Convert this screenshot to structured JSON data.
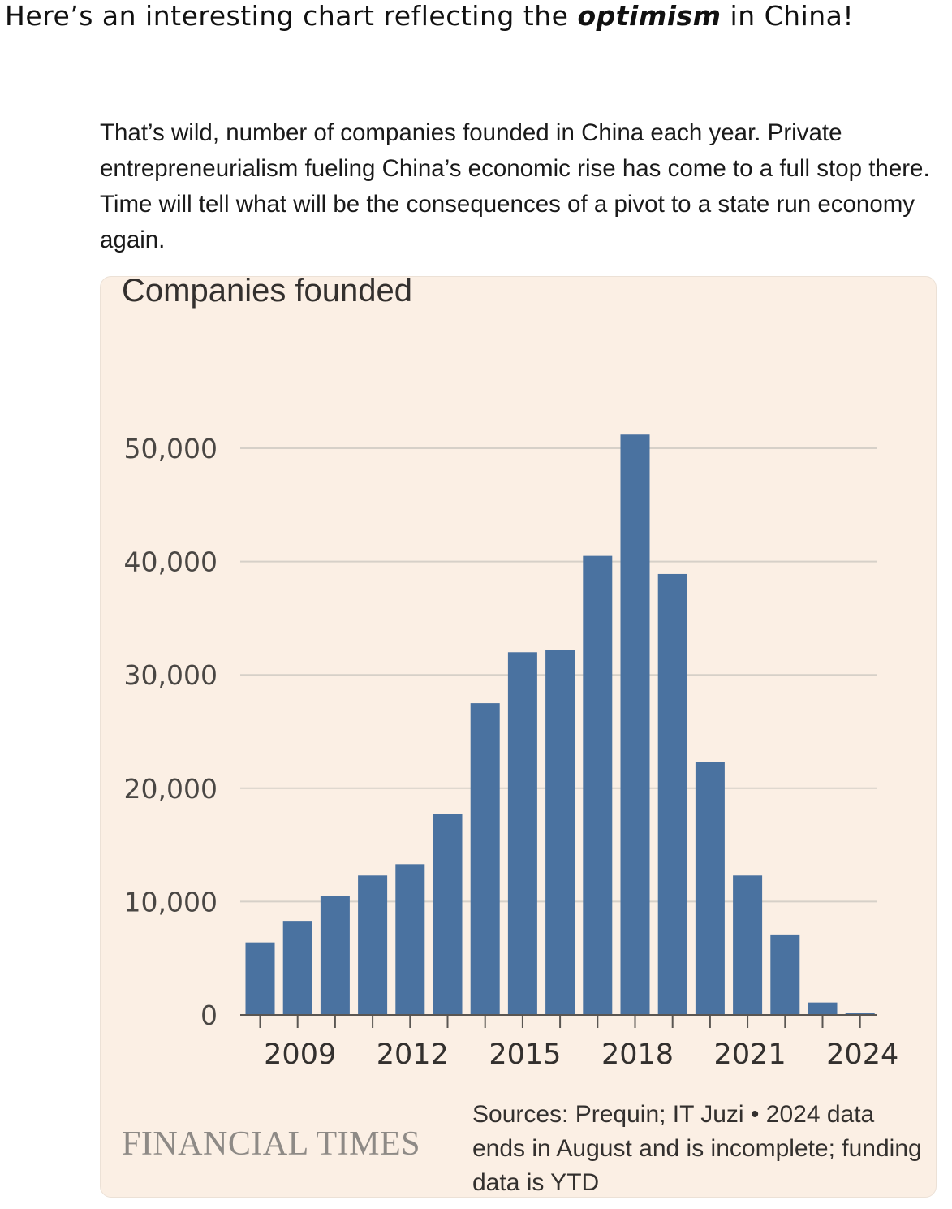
{
  "headline": {
    "before": "Here’s an interesting chart reflecting the ",
    "emphasis": "optimism",
    "after": " in China!"
  },
  "tweet": {
    "text": "That’s wild, number of companies founded in China each year. Private entrepreneurialism fueling China’s economic rise has come to a full stop there. Time will tell what will be the consequences of a pivot to a state run economy again."
  },
  "colors": {
    "bar": "#4a72a0",
    "gridline": "#d6d0c8",
    "card_background": "#fbefe4"
  },
  "chart_data": {
    "type": "bar",
    "title": "Companies founded",
    "xlabel": "",
    "ylabel": "",
    "categories": [
      "2008",
      "2009",
      "2010",
      "2011",
      "2012",
      "2013",
      "2014",
      "2015",
      "2016",
      "2017",
      "2018",
      "2019",
      "2020",
      "2021",
      "2022",
      "2023",
      "2024"
    ],
    "values": [
      6400,
      8300,
      10500,
      12300,
      13300,
      17700,
      27500,
      32000,
      32200,
      40500,
      51200,
      38900,
      22300,
      12300,
      7100,
      1100,
      150
    ],
    "ylim": [
      0,
      50000
    ],
    "yticks": [
      0,
      10000,
      20000,
      30000,
      40000,
      50000
    ],
    "ytick_labels": [
      "0",
      "10,000",
      "20,000",
      "30,000",
      "40,000",
      "50,000"
    ],
    "xtick_labels": [
      "2009",
      "2012",
      "2015",
      "2018",
      "2021",
      "2024"
    ],
    "grid": true,
    "legend": "none"
  },
  "footer": {
    "brand": "FINANCIAL TIMES",
    "source": "Sources: Prequin; IT Juzi • 2024 data ends in August and is incomplete; funding data is YTD"
  }
}
